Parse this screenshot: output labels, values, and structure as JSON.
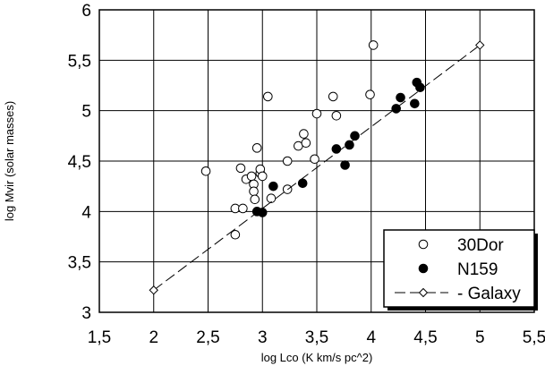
{
  "chart_data": {
    "type": "scatter",
    "xlabel": "log Lco (K km/s pc^2)",
    "ylabel": "log Mvir (solar masses)",
    "xlim": [
      1.5,
      5.5
    ],
    "ylim": [
      3,
      6
    ],
    "x_ticks": [
      "1,5",
      "2",
      "2,5",
      "3",
      "3,5",
      "4",
      "4,5",
      "5",
      "5,5"
    ],
    "y_ticks": [
      "3",
      "3,5",
      "4",
      "4,5",
      "5",
      "5,5",
      "6"
    ],
    "grid": true,
    "legend_position": "bottom-right",
    "series": [
      {
        "name": "30Dor",
        "marker": "open-circle",
        "color": "#000000",
        "points": [
          [
            2.48,
            4.4
          ],
          [
            2.75,
            3.77
          ],
          [
            2.75,
            4.03
          ],
          [
            2.8,
            4.43
          ],
          [
            2.82,
            4.03
          ],
          [
            2.85,
            4.32
          ],
          [
            2.9,
            4.35
          ],
          [
            2.92,
            4.27
          ],
          [
            2.92,
            4.2
          ],
          [
            2.93,
            4.12
          ],
          [
            2.95,
            4.63
          ],
          [
            2.98,
            4.38
          ],
          [
            2.98,
            4.42
          ],
          [
            3.0,
            4.35
          ],
          [
            3.05,
            5.14
          ],
          [
            3.08,
            4.13
          ],
          [
            3.23,
            4.5
          ],
          [
            3.23,
            4.22
          ],
          [
            3.33,
            4.65
          ],
          [
            3.38,
            4.77
          ],
          [
            3.4,
            4.68
          ],
          [
            3.48,
            4.52
          ],
          [
            3.5,
            4.97
          ],
          [
            3.65,
            5.14
          ],
          [
            3.68,
            4.95
          ],
          [
            3.99,
            5.16
          ],
          [
            4.02,
            5.65
          ]
        ]
      },
      {
        "name": "N159",
        "marker": "filled-circle",
        "color": "#000000",
        "points": [
          [
            2.95,
            4.0
          ],
          [
            3.0,
            3.99
          ],
          [
            3.1,
            4.25
          ],
          [
            3.37,
            4.28
          ],
          [
            3.68,
            4.62
          ],
          [
            3.76,
            4.46
          ],
          [
            3.8,
            4.66
          ],
          [
            3.85,
            4.75
          ],
          [
            4.23,
            5.02
          ],
          [
            4.27,
            5.13
          ],
          [
            4.4,
            5.07
          ],
          [
            4.42,
            5.28
          ],
          [
            4.45,
            5.23
          ]
        ]
      },
      {
        "name": "Galaxy",
        "marker": "open-diamond",
        "line": "dashed",
        "color": "#000000",
        "points": [
          [
            2.0,
            3.22
          ],
          [
            5.0,
            5.65
          ]
        ]
      }
    ]
  }
}
